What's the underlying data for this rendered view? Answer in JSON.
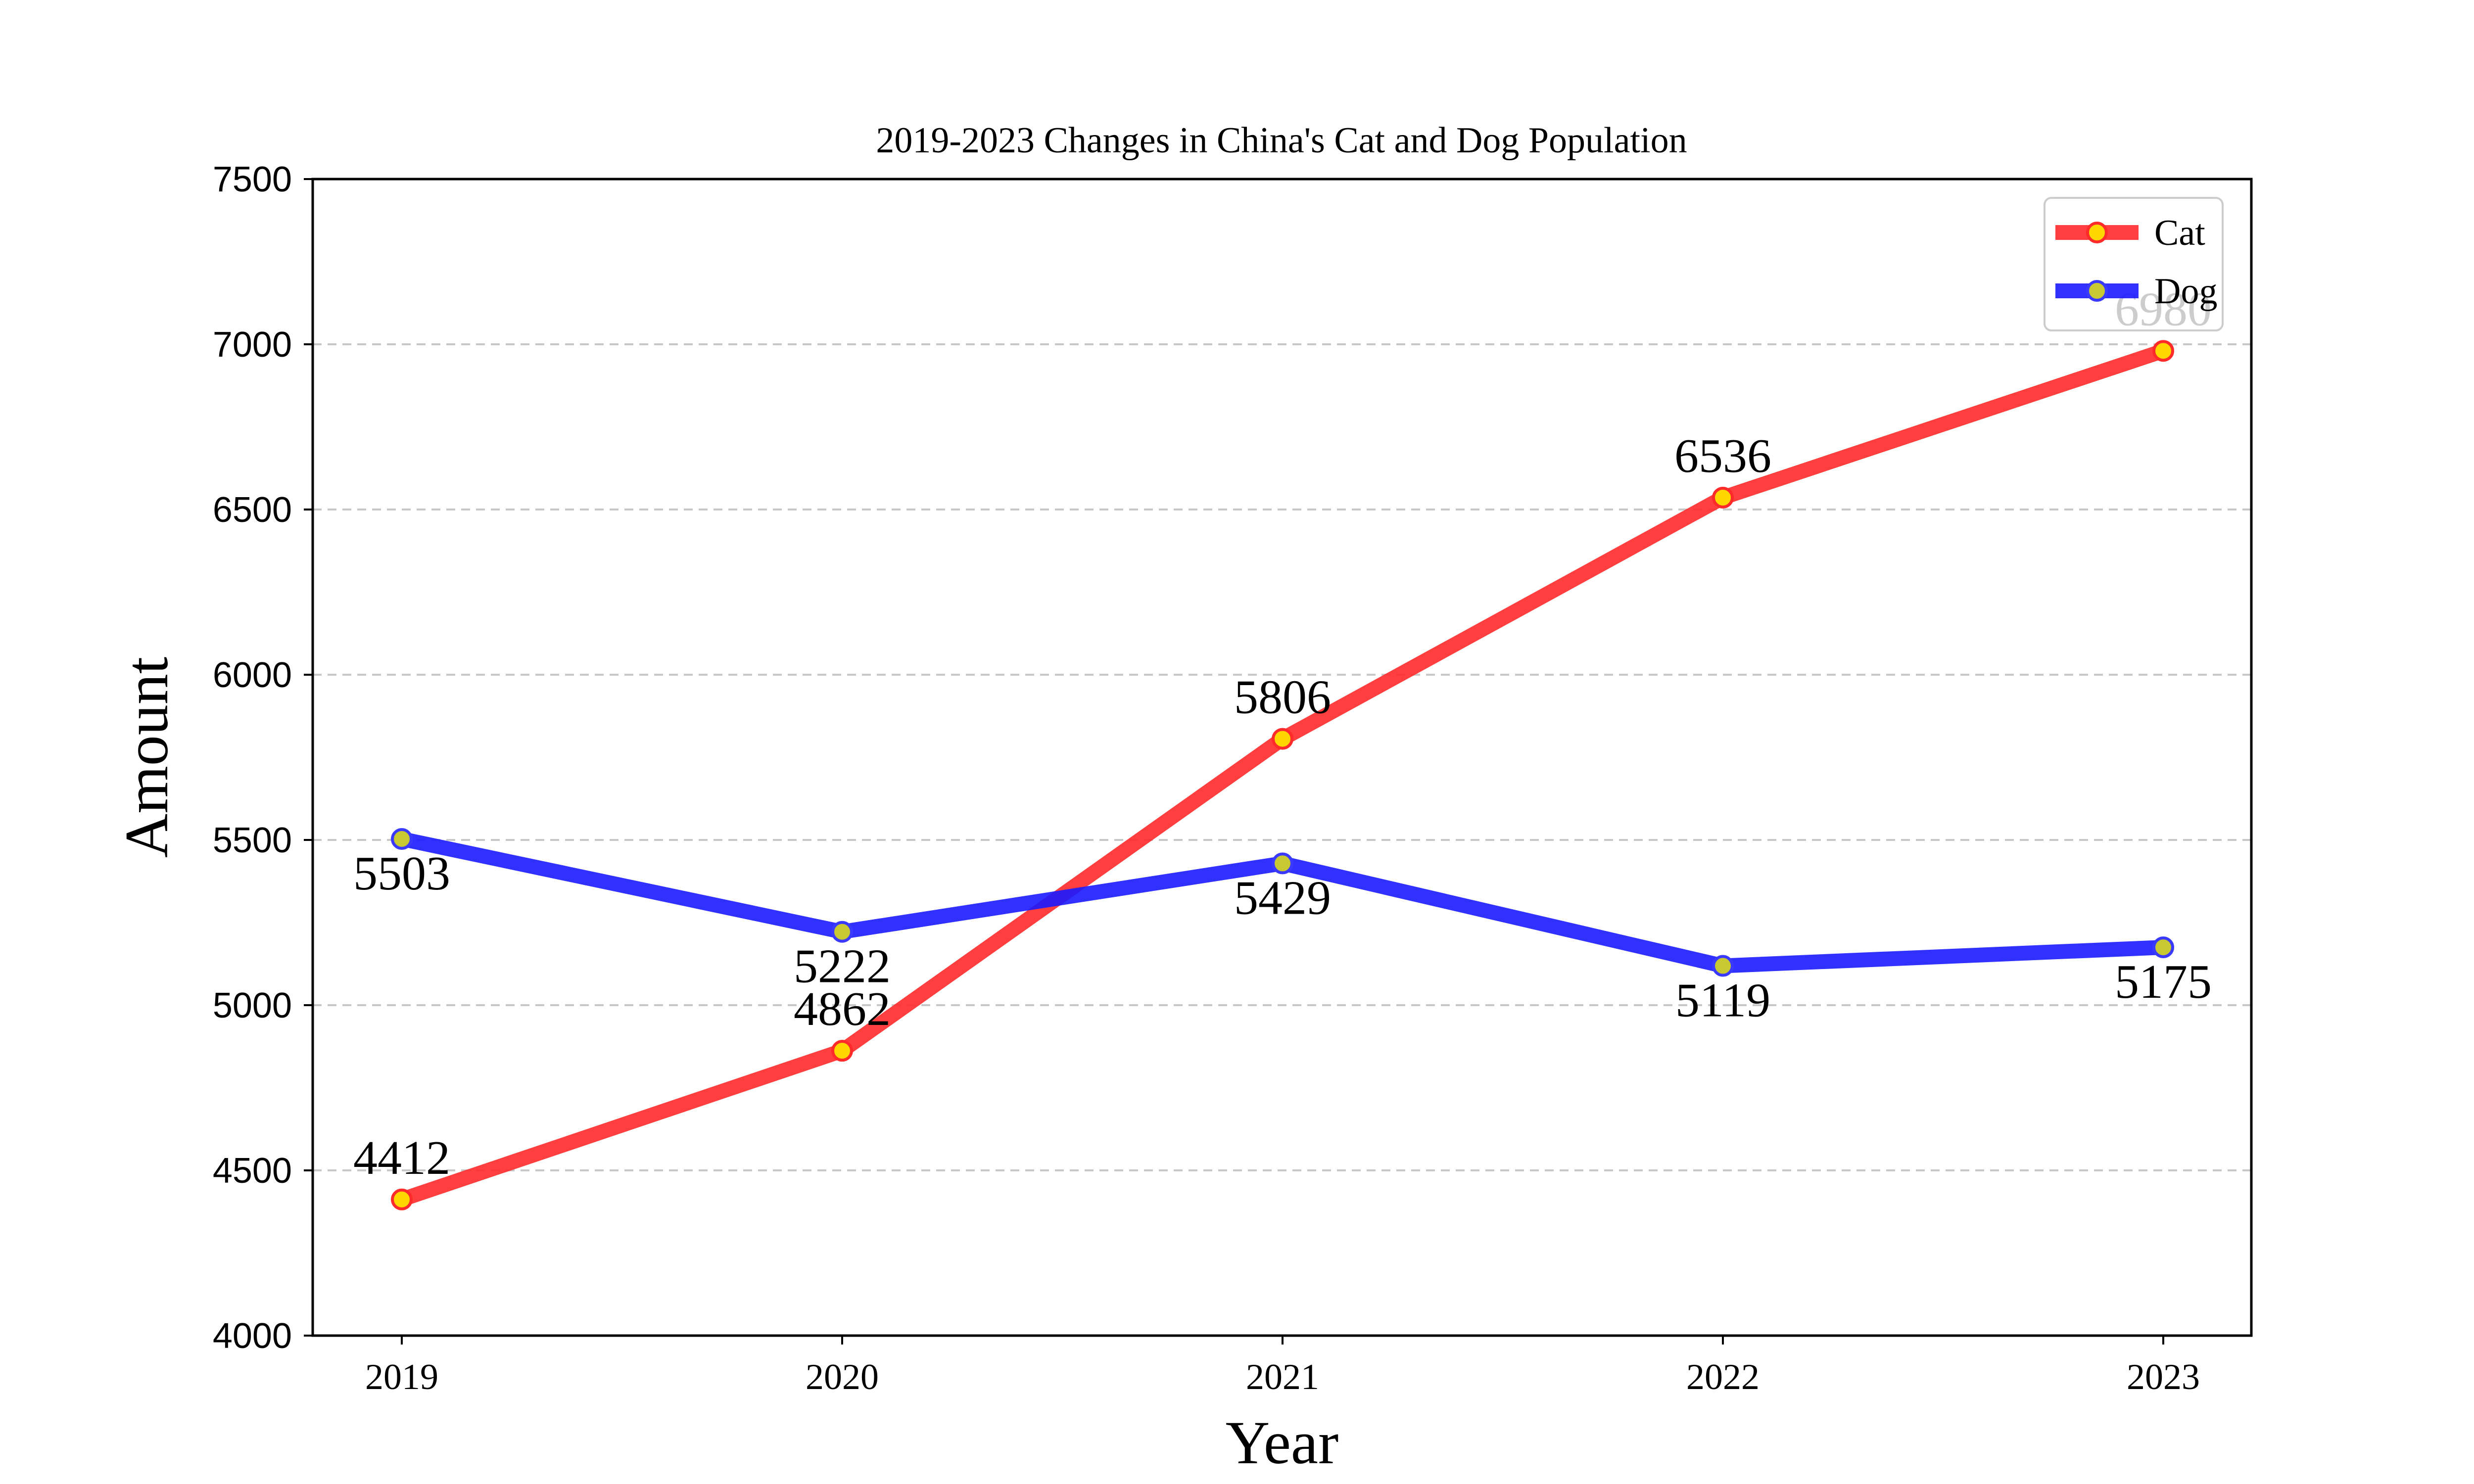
{
  "chart_data": {
    "type": "line",
    "title": "2019-2023 Changes in China's Cat and Dog Population",
    "xlabel": "Year",
    "ylabel": "Amount",
    "categories": [
      "2019",
      "2020",
      "2021",
      "2022",
      "2023"
    ],
    "ylim": [
      4000,
      7500
    ],
    "yticks": [
      4000,
      4500,
      5000,
      5500,
      6000,
      6500,
      7000,
      7500
    ],
    "grid": "y-dashed",
    "legend_position": "top-right",
    "series": [
      {
        "name": "Cat",
        "values": [
          4412,
          4862,
          5806,
          6536,
          6980
        ],
        "labels": [
          "4412",
          "4862",
          "5806",
          "6536",
          "6980"
        ],
        "label_side": "above",
        "color": "#ff2a2a",
        "marker_fill": "#ffd700",
        "marker_edge": "#ff2a2a"
      },
      {
        "name": "Dog",
        "values": [
          5503,
          5222,
          5429,
          5119,
          5175
        ],
        "labels": [
          "5503",
          "5222",
          "5429",
          "5119",
          "5175"
        ],
        "label_side": "below",
        "color": "#1a1aff",
        "marker_fill": "#c8c832",
        "marker_edge": "#3a3aff"
      }
    ]
  }
}
